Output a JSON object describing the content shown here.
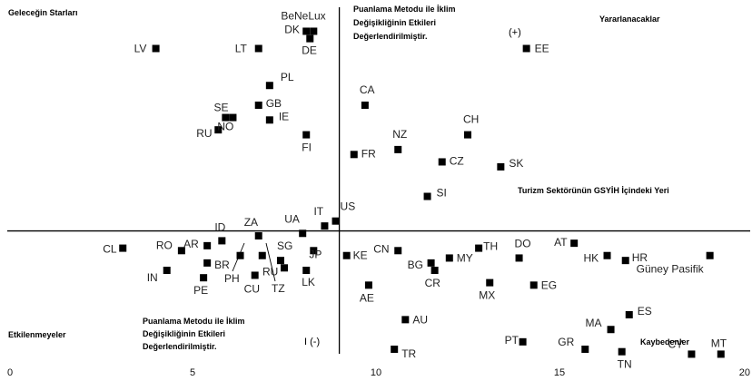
{
  "chart_data": {
    "type": "scatter",
    "title": "",
    "xlabel": "",
    "ylabel": "",
    "xlim": [
      0,
      20
    ],
    "ylim": [
      -5.5,
      9
    ],
    "x_ticks": [
      "0",
      "5",
      "10",
      "15",
      "20"
    ],
    "x_divider": 9.0,
    "y_divider": 0,
    "grid": false,
    "series": [
      {
        "points": [
          {
            "label": "LV",
            "x": 4.0,
            "y": 7.4
          },
          {
            "label": "LT",
            "x": 6.8,
            "y": 7.4
          },
          {
            "label": "DK",
            "x": 8.1,
            "y": 8.1
          },
          {
            "label": "BeNeLux",
            "x": 8.3,
            "y": 8.1
          },
          {
            "label": "DE",
            "x": 8.2,
            "y": 7.8
          },
          {
            "label": "EE",
            "x": 14.1,
            "y": 7.4
          },
          {
            "label": "PL",
            "x": 7.1,
            "y": 5.9
          },
          {
            "label": "GB",
            "x": 6.8,
            "y": 5.1
          },
          {
            "label": "SE",
            "x": 6.1,
            "y": 4.6
          },
          {
            "label": "RU",
            "x": 5.7,
            "y": 4.1
          },
          {
            "label": "NO",
            "x": 5.9,
            "y": 4.6
          },
          {
            "label": "IE",
            "x": 7.1,
            "y": 4.5
          },
          {
            "label": "FI",
            "x": 8.1,
            "y": 3.9
          },
          {
            "label": "CA",
            "x": 9.7,
            "y": 5.1
          },
          {
            "label": "NZ",
            "x": 10.6,
            "y": 3.3
          },
          {
            "label": "FR",
            "x": 9.4,
            "y": 3.1
          },
          {
            "label": "CH",
            "x": 12.5,
            "y": 3.9
          },
          {
            "label": "CZ",
            "x": 11.8,
            "y": 2.8
          },
          {
            "label": "SK",
            "x": 13.4,
            "y": 2.6
          },
          {
            "label": "SI",
            "x": 11.4,
            "y": 1.4
          },
          {
            "label": "US",
            "x": 8.9,
            "y": 0.4
          },
          {
            "label": "IT",
            "x": 8.6,
            "y": 0.2
          },
          {
            "label": "UA",
            "x": 8.0,
            "y": -0.1
          },
          {
            "label": "ZA",
            "x": 6.8,
            "y": -0.2
          },
          {
            "label": "ID",
            "x": 5.8,
            "y": -0.4
          },
          {
            "label": "AR",
            "x": 5.4,
            "y": -0.6
          },
          {
            "label": "RO",
            "x": 4.7,
            "y": -0.8
          },
          {
            "label": "CL",
            "x": 3.1,
            "y": -0.7
          },
          {
            "label": "IN",
            "x": 4.3,
            "y": -1.6
          },
          {
            "label": "BR",
            "x": 5.4,
            "y": -1.3
          },
          {
            "label": "PE",
            "x": 5.3,
            "y": -1.9
          },
          {
            "label": "CU",
            "x": 6.7,
            "y": -1.8
          },
          {
            "label": "PH",
            "x": 6.3,
            "y": -1.0
          },
          {
            "label": "TZ",
            "x": 6.9,
            "y": -1.0
          },
          {
            "label": "SG",
            "x": 7.4,
            "y": -1.2
          },
          {
            "label": "RU",
            "x": 7.5,
            "y": -1.5
          },
          {
            "label": "JP",
            "x": 8.3,
            "y": -0.8
          },
          {
            "label": "LK",
            "x": 8.1,
            "y": -1.6
          },
          {
            "label": "KE",
            "x": 9.2,
            "y": -1.0
          },
          {
            "label": "CN",
            "x": 10.6,
            "y": -0.8
          },
          {
            "label": "BG",
            "x": 11.5,
            "y": -1.3
          },
          {
            "label": "MY",
            "x": 12.0,
            "y": -1.1
          },
          {
            "label": "CR",
            "x": 11.6,
            "y": -1.6
          },
          {
            "label": "TH",
            "x": 12.8,
            "y": -0.7
          },
          {
            "label": "DO",
            "x": 13.9,
            "y": -1.1
          },
          {
            "label": "MX",
            "x": 13.1,
            "y": -2.1
          },
          {
            "label": "EG",
            "x": 14.3,
            "y": -2.2
          },
          {
            "label": "AE",
            "x": 9.8,
            "y": -2.2
          },
          {
            "label": "AT",
            "x": 15.4,
            "y": -0.5
          },
          {
            "label": "HK",
            "x": 16.3,
            "y": -1.0
          },
          {
            "label": "HR",
            "x": 16.8,
            "y": -1.2
          },
          {
            "label": "Güney Pasifik",
            "x": 19.1,
            "y": -1.0
          },
          {
            "label": "ES",
            "x": 16.9,
            "y": -3.4
          },
          {
            "label": "MA",
            "x": 16.4,
            "y": -4.0
          },
          {
            "label": "AU",
            "x": 10.8,
            "y": -3.6
          },
          {
            "label": "PT",
            "x": 14.0,
            "y": -4.5
          },
          {
            "label": "GR",
            "x": 15.7,
            "y": -4.8
          },
          {
            "label": "TN",
            "x": 16.7,
            "y": -4.9
          },
          {
            "label": "CY",
            "x": 18.6,
            "y": -5.0
          },
          {
            "label": "MT",
            "x": 19.4,
            "y": -5.0
          },
          {
            "label": "TR",
            "x": 10.5,
            "y": -4.8
          }
        ]
      }
    ],
    "annotations": {
      "top_left": "Geleceğin Starları",
      "top_right": "Yararlanacaklar",
      "bottom_left": "Etkilenmeyeler",
      "bottom_right": "Kaybedenler",
      "plus": "(+)",
      "minus": "I (-)",
      "method_top": [
        "Puanlama Metodu ile İklim",
        "Değişikliğinin Etkileri",
        "Değerlendirilmiştir."
      ],
      "method_bottom": [
        "Puanlama Metodu ile İklim",
        "Değişikliğinin Etkileri",
        "Değerlendirilmiştir."
      ],
      "tourism": "Turizm Sektörünün GSYİH İçindeki Yeri"
    }
  }
}
